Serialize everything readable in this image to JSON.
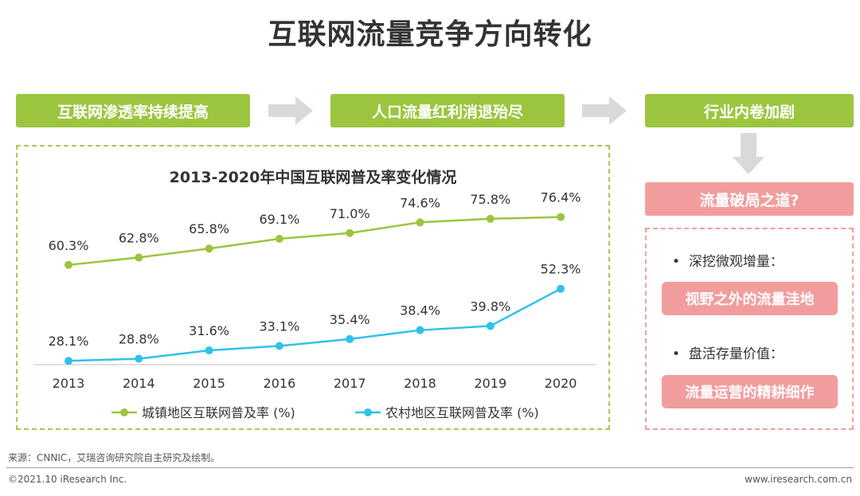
{
  "title": "互联网流量竞争方向转化",
  "steps": [
    "互联网渗透率持续提高",
    "人口流量红利消退殆尽",
    "行业内卷加剧"
  ],
  "right_panel": {
    "head": "流量破局之道?",
    "bullets": [
      {
        "text": "深挖微观增量：",
        "pill": "视野之外的流量洼地"
      },
      {
        "text": "盘活存量价值：",
        "pill": "流量运营的精耕细作"
      }
    ]
  },
  "colors": {
    "green": "#9cc53f",
    "blue": "#2ec2ea",
    "pink": "#f29d9d",
    "arrow": "#d9d9d9"
  },
  "chart_data": {
    "type": "line",
    "title": "2013-2020年中国互联网普及率变化情况",
    "categories": [
      "2013",
      "2014",
      "2015",
      "2016",
      "2017",
      "2018",
      "2019",
      "2020"
    ],
    "ylim": [
      0,
      100
    ],
    "grid": false,
    "legend_position": "bottom",
    "series": [
      {
        "name": "城镇地区互联网普及率 (%)",
        "color": "#9cc53f",
        "values": [
          60.3,
          62.8,
          65.8,
          69.1,
          71.0,
          74.6,
          75.8,
          76.4
        ],
        "labels": [
          "60.3%",
          "62.8%",
          "65.8%",
          "69.1%",
          "71.0%",
          "74.6%",
          "75.8%",
          "76.4%"
        ]
      },
      {
        "name": "农村地区互联网普及率 (%)",
        "color": "#2ec2ea",
        "values": [
          28.1,
          28.8,
          31.6,
          33.1,
          35.4,
          38.4,
          39.8,
          52.3
        ],
        "labels": [
          "28.1%",
          "28.8%",
          "31.6%",
          "33.1%",
          "35.4%",
          "38.4%",
          "39.8%",
          "52.3%"
        ]
      }
    ]
  },
  "footer": {
    "source": "来源：CNNIC，艾瑞咨询研究院自主研究及绘制。",
    "copyright": "©2021.10 iResearch Inc.",
    "website": "www.iresearch.com.cn"
  }
}
